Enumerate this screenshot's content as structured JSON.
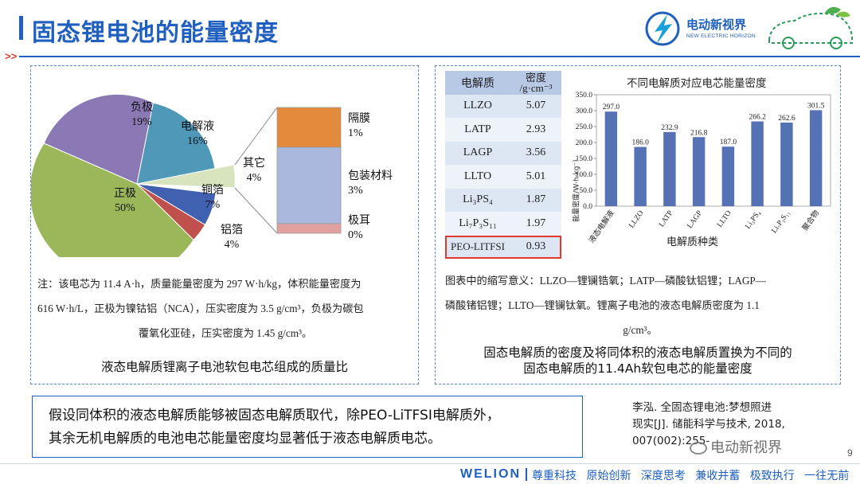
{
  "page": {
    "title": "固态锂电池的能量密度",
    "page_number": "9",
    "logo_cn": "电动新视界",
    "logo_en": "NEW ELECTRIC HORIZON",
    "watermark": "电动新视界",
    "colors": {
      "title": "#1f5fbf",
      "accent": "#1aa0d8",
      "red": "#e03a2e",
      "bar": "#5572b5"
    }
  },
  "left_panel": {
    "pie_labels": [
      {
        "name": "负极",
        "pct": "19%"
      },
      {
        "name": "电解液",
        "pct": "16%"
      },
      {
        "name": "其它",
        "pct": "4%"
      },
      {
        "name": "铜箔",
        "pct": "7%"
      },
      {
        "name": "铝箔",
        "pct": "4%"
      },
      {
        "name": "正极",
        "pct": "50%"
      }
    ],
    "stack_labels": [
      {
        "name": "隔膜",
        "pct": "1%"
      },
      {
        "name": "包装材料",
        "pct": "3%"
      },
      {
        "name": "极耳",
        "pct": "0%"
      }
    ],
    "note_line1": "注：该电芯为 11.4 A·h，质量能量密度为 297 W·h/kg，体积能量密度为",
    "note_line2": "616 W·h/L，正极为镍钴铝（NCA），压实密度为 3.5 g/cm³，负极为碳包",
    "note_line3": "覆氧化亚硅，压实密度为 1.45 g/cm³。",
    "caption": "液态电解质锂离子电池软包电芯组成的质量比"
  },
  "right_panel": {
    "table_header": {
      "col1": "电解质",
      "col2_line1": "密度",
      "col2_line2": "/g·cm⁻³"
    },
    "table_rows": [
      {
        "name": "LLZO",
        "value": "5.07"
      },
      {
        "name": "LATP",
        "value": "2.93"
      },
      {
        "name": "LAGP",
        "value": "3.56"
      },
      {
        "name": "LLTO",
        "value": "5.01"
      },
      {
        "name": "Li₃PS₄",
        "value": "1.87"
      },
      {
        "name": "Li₇P₃S₁₁",
        "value": "1.97"
      },
      {
        "name": "PEO-LITFSI",
        "value": "0.93"
      }
    ],
    "note_line1": "图表中的缩写意义：LLZO—锂镧锆氧；LATP—磷酸钛铝锂；LAGP—",
    "note_line2": "磷酸锗铝锂；LLTO—锂镧钛氧。锂离子电池的液态电解质密度为 1.1",
    "note_line3": "g/cm³。",
    "caption_line1": "固态电解质的密度及将同体积的液态电解质置换为不同的",
    "caption_line2": "固态电解质的11.4Ah软包电芯的能量密度"
  },
  "chart_data": {
    "type": "bar",
    "title": "不同电解质对应电芯能量密度",
    "xlabel": "电解质种类",
    "ylabel": "能量密度/W·h·kg⁻¹",
    "categories": [
      "液态电解液",
      "LLZO",
      "LATP",
      "LAGP",
      "LLTO",
      "Li₃PS₄",
      "Li₇P₃S₁₁",
      "聚合物"
    ],
    "values": [
      297.0,
      186.0,
      232.9,
      216.8,
      187.0,
      266.2,
      262.6,
      301.5
    ],
    "value_labels": [
      "297.0",
      "186.0",
      "232.9",
      "216.8",
      "187.0",
      "266.2",
      "262.6",
      "301.5"
    ],
    "ylim": [
      0,
      350
    ],
    "yticks": [
      "0.0",
      "50.0",
      "100.0",
      "150.0",
      "200.0",
      "250.0",
      "300.0",
      "350.0"
    ],
    "grid": false
  },
  "conclusion": {
    "line1": "假设同体积的液态电解质能够被固态电解质取代，除PEO-LiTFSI电解质外，",
    "line2": "其余无机电解质的电池电芯能量密度均显著低于液态电解质电芯。"
  },
  "reference": {
    "line1": "李泓. 全固态锂电池:梦想照进",
    "line2": "现实[J]. 储能科学与技术, 2018,",
    "line3": "007(002):255-"
  },
  "footer": {
    "brand": "WELION",
    "items": [
      "尊重科技",
      "原始创新",
      "深度思考",
      "兼收并蓄",
      "极致执行",
      "一往无前"
    ]
  }
}
